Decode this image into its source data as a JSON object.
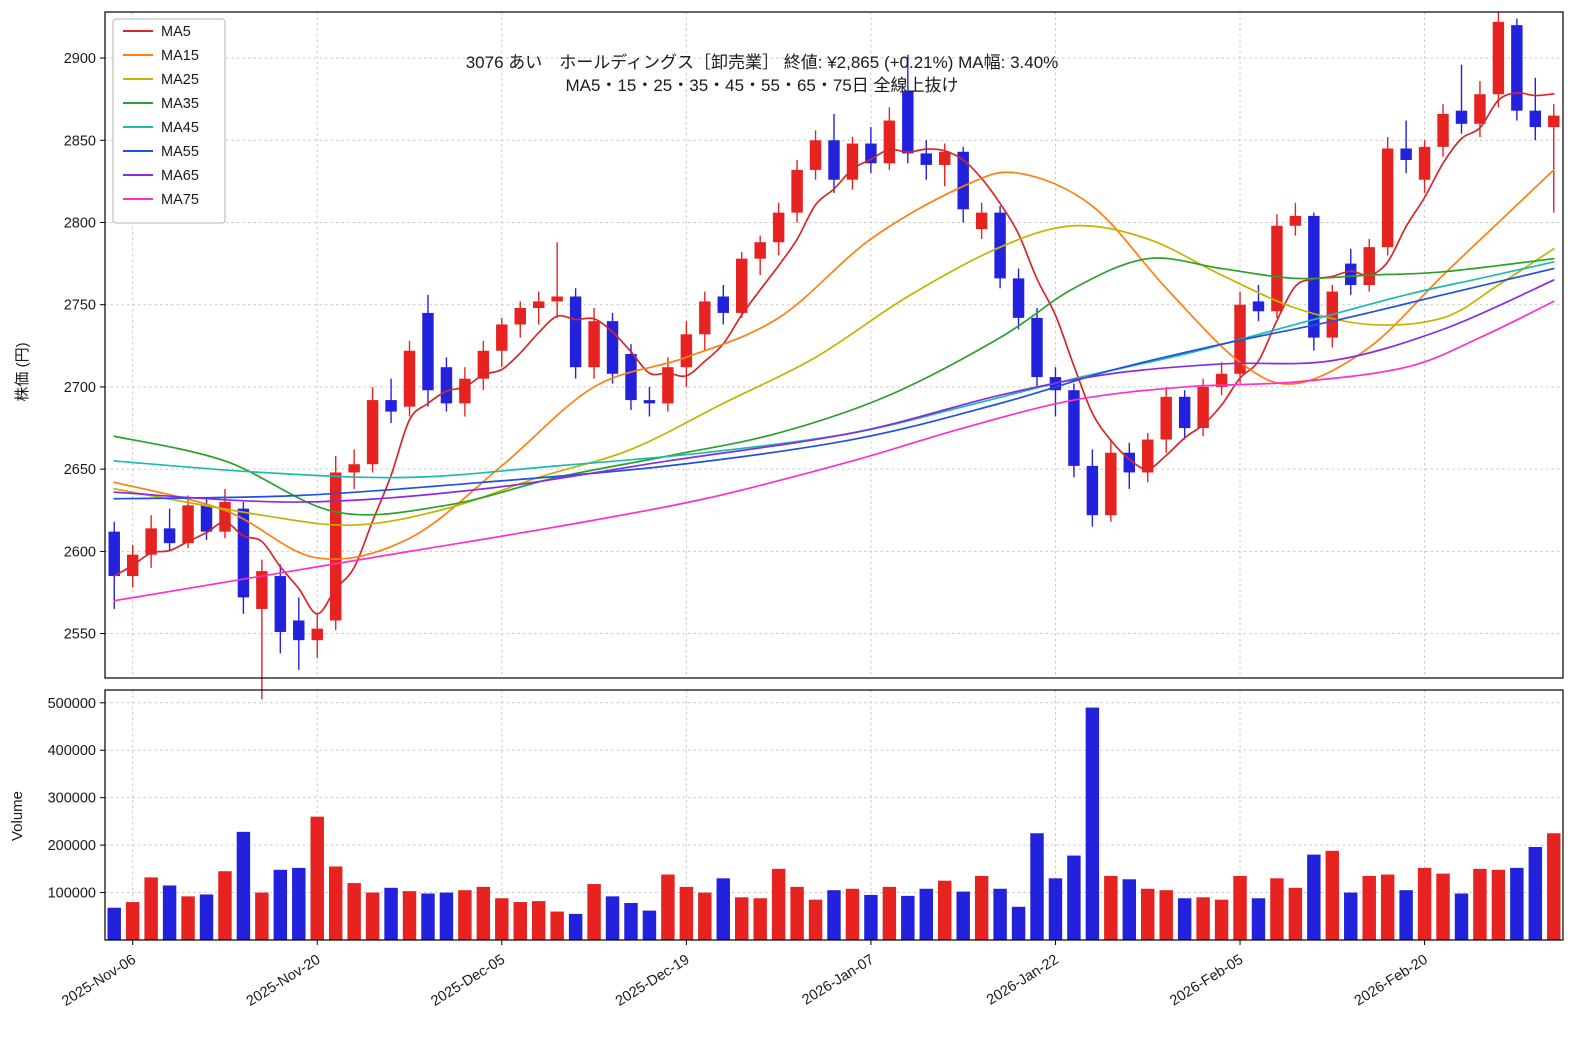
{
  "title": {
    "line1": "3076  あい　ホールディングス［卸売業］  終値: ¥2,865 (+0.21%)  MA幅: 3.40%",
    "line2": "MA5・15・25・35・45・55・65・75日 全線上抜け"
  },
  "axes": {
    "price_label": "株価 (円)",
    "volume_label": "Volume"
  },
  "chart_data": {
    "type": "candlestick",
    "up_color": "#e62320",
    "down_color": "#2222dd",
    "grid_color": "#c9c9c9",
    "price_ticks": [
      2550,
      2600,
      2650,
      2700,
      2750,
      2800,
      2850,
      2900
    ],
    "volume_ticks": [
      100000,
      200000,
      300000,
      400000,
      500000
    ],
    "x_tick_indices": [
      1,
      11,
      21,
      31,
      41,
      51,
      61,
      71
    ],
    "x_tick_labels": [
      "2025-Nov-06",
      "2025-Nov-20",
      "2025-Dec-05",
      "2025-Dec-19",
      "2026-Jan-07",
      "2026-Jan-22",
      "2026-Feb-05",
      "2026-Feb-20"
    ],
    "price_range": [
      2523,
      2928
    ],
    "volume_range": [
      0,
      527000
    ],
    "candles": [
      [
        2612,
        2618,
        2565,
        2585,
        68000
      ],
      [
        2585,
        2604,
        2578,
        2598,
        80000
      ],
      [
        2598,
        2622,
        2590,
        2614,
        132000
      ],
      [
        2614,
        2626,
        2600,
        2605,
        115000
      ],
      [
        2605,
        2634,
        2602,
        2628,
        92000
      ],
      [
        2628,
        2633,
        2607,
        2612,
        96000
      ],
      [
        2612,
        2638,
        2608,
        2630,
        145000
      ],
      [
        2626,
        2630,
        2562,
        2572,
        228000
      ],
      [
        2565,
        2595,
        2510,
        2588,
        100000
      ],
      [
        2585,
        2592,
        2538,
        2551,
        148000
      ],
      [
        2558,
        2572,
        2528,
        2546,
        152000
      ],
      [
        2546,
        2562,
        2535,
        2553,
        260000
      ],
      [
        2558,
        2658,
        2552,
        2648,
        155000
      ],
      [
        2648,
        2662,
        2638,
        2653,
        120000
      ],
      [
        2653,
        2700,
        2648,
        2692,
        100000
      ],
      [
        2692,
        2705,
        2678,
        2685,
        110000
      ],
      [
        2688,
        2728,
        2682,
        2722,
        103000
      ],
      [
        2745,
        2756,
        2688,
        2698,
        98000
      ],
      [
        2712,
        2718,
        2685,
        2690,
        100000
      ],
      [
        2690,
        2712,
        2682,
        2705,
        105000
      ],
      [
        2705,
        2728,
        2698,
        2722,
        112000
      ],
      [
        2722,
        2742,
        2712,
        2738,
        88000
      ],
      [
        2738,
        2752,
        2730,
        2748,
        80000
      ],
      [
        2748,
        2758,
        2738,
        2752,
        82000
      ],
      [
        2752,
        2788,
        2742,
        2755,
        60000
      ],
      [
        2755,
        2760,
        2705,
        2712,
        55000
      ],
      [
        2712,
        2748,
        2705,
        2740,
        118000
      ],
      [
        2740,
        2745,
        2702,
        2708,
        92000
      ],
      [
        2720,
        2726,
        2686,
        2692,
        78000
      ],
      [
        2692,
        2700,
        2682,
        2690,
        62000
      ],
      [
        2690,
        2718,
        2685,
        2712,
        138000
      ],
      [
        2712,
        2740,
        2700,
        2732,
        112000
      ],
      [
        2732,
        2758,
        2722,
        2752,
        100000
      ],
      [
        2755,
        2762,
        2738,
        2745,
        130000
      ],
      [
        2745,
        2782,
        2742,
        2778,
        90000
      ],
      [
        2778,
        2792,
        2768,
        2788,
        88000
      ],
      [
        2788,
        2812,
        2780,
        2806,
        150000
      ],
      [
        2806,
        2838,
        2800,
        2832,
        112000
      ],
      [
        2832,
        2856,
        2826,
        2850,
        85000
      ],
      [
        2850,
        2866,
        2818,
        2826,
        105000
      ],
      [
        2826,
        2852,
        2820,
        2848,
        108000
      ],
      [
        2848,
        2858,
        2830,
        2836,
        95000
      ],
      [
        2836,
        2870,
        2832,
        2862,
        112000
      ],
      [
        2880,
        2902,
        2836,
        2842,
        93000
      ],
      [
        2842,
        2850,
        2826,
        2835,
        108000
      ],
      [
        2835,
        2848,
        2822,
        2843,
        125000
      ],
      [
        2843,
        2846,
        2800,
        2808,
        102000
      ],
      [
        2796,
        2812,
        2790,
        2806,
        135000
      ],
      [
        2806,
        2810,
        2760,
        2766,
        108000
      ],
      [
        2766,
        2772,
        2735,
        2742,
        70000
      ],
      [
        2742,
        2748,
        2700,
        2706,
        225000
      ],
      [
        2706,
        2712,
        2682,
        2698,
        130000
      ],
      [
        2698,
        2702,
        2645,
        2652,
        178000
      ],
      [
        2652,
        2662,
        2615,
        2622,
        490000
      ],
      [
        2622,
        2668,
        2618,
        2660,
        135000
      ],
      [
        2660,
        2666,
        2638,
        2648,
        128000
      ],
      [
        2648,
        2672,
        2642,
        2668,
        108000
      ],
      [
        2668,
        2700,
        2660,
        2694,
        105000
      ],
      [
        2694,
        2698,
        2668,
        2675,
        88000
      ],
      [
        2675,
        2705,
        2670,
        2700,
        90000
      ],
      [
        2700,
        2715,
        2695,
        2708,
        85000
      ],
      [
        2708,
        2758,
        2702,
        2750,
        135000
      ],
      [
        2752,
        2762,
        2740,
        2746,
        88000
      ],
      [
        2746,
        2805,
        2742,
        2798,
        130000
      ],
      [
        2798,
        2812,
        2792,
        2804,
        110000
      ],
      [
        2804,
        2806,
        2722,
        2730,
        180000
      ],
      [
        2730,
        2762,
        2724,
        2758,
        188000
      ],
      [
        2775,
        2784,
        2756,
        2762,
        100000
      ],
      [
        2762,
        2790,
        2758,
        2785,
        135000
      ],
      [
        2785,
        2852,
        2780,
        2845,
        138000
      ],
      [
        2845,
        2862,
        2830,
        2838,
        105000
      ],
      [
        2826,
        2850,
        2818,
        2846,
        152000
      ],
      [
        2846,
        2872,
        2840,
        2866,
        140000
      ],
      [
        2868,
        2896,
        2854,
        2860,
        98000
      ],
      [
        2860,
        2886,
        2852,
        2878,
        150000
      ],
      [
        2878,
        2928,
        2870,
        2922,
        148000
      ],
      [
        2920,
        2924,
        2862,
        2868,
        152000
      ],
      [
        2868,
        2888,
        2850,
        2858,
        196000
      ],
      [
        2858,
        2872,
        2806,
        2865,
        225000
      ]
    ],
    "ma_series": [
      {
        "name": "MA5",
        "color": "#d62728",
        "window": 5
      },
      {
        "name": "MA15",
        "color": "#ff7f0e",
        "points": [
          [
            0,
            2642
          ],
          [
            6,
            2625
          ],
          [
            11,
            2596
          ],
          [
            16,
            2608
          ],
          [
            21,
            2652
          ],
          [
            26,
            2700
          ],
          [
            31,
            2718
          ],
          [
            36,
            2742
          ],
          [
            41,
            2790
          ],
          [
            46,
            2822
          ],
          [
            49,
            2830
          ],
          [
            53,
            2810
          ],
          [
            57,
            2760
          ],
          [
            61,
            2715
          ],
          [
            64,
            2702
          ],
          [
            68,
            2724
          ],
          [
            72,
            2768
          ],
          [
            75,
            2800
          ],
          [
            78,
            2832
          ]
        ]
      },
      {
        "name": "MA25",
        "color": "#c3b400",
        "points": [
          [
            0,
            2638
          ],
          [
            8,
            2622
          ],
          [
            13,
            2616
          ],
          [
            18,
            2626
          ],
          [
            23,
            2645
          ],
          [
            28,
            2662
          ],
          [
            33,
            2690
          ],
          [
            38,
            2718
          ],
          [
            43,
            2755
          ],
          [
            48,
            2785
          ],
          [
            52,
            2798
          ],
          [
            56,
            2790
          ],
          [
            60,
            2768
          ],
          [
            64,
            2748
          ],
          [
            68,
            2738
          ],
          [
            72,
            2742
          ],
          [
            75,
            2762
          ],
          [
            78,
            2784
          ]
        ]
      },
      {
        "name": "MA35",
        "color": "#2ca02c",
        "points": [
          [
            0,
            2670
          ],
          [
            6,
            2655
          ],
          [
            12,
            2624
          ],
          [
            18,
            2628
          ],
          [
            24,
            2645
          ],
          [
            30,
            2658
          ],
          [
            36,
            2672
          ],
          [
            42,
            2695
          ],
          [
            48,
            2730
          ],
          [
            52,
            2760
          ],
          [
            56,
            2778
          ],
          [
            60,
            2772
          ],
          [
            64,
            2766
          ],
          [
            68,
            2768
          ],
          [
            72,
            2770
          ],
          [
            78,
            2778
          ]
        ]
      },
      {
        "name": "MA45",
        "color": "#1abcb0",
        "points": [
          [
            0,
            2655
          ],
          [
            8,
            2648
          ],
          [
            16,
            2645
          ],
          [
            24,
            2652
          ],
          [
            32,
            2660
          ],
          [
            40,
            2672
          ],
          [
            46,
            2688
          ],
          [
            52,
            2705
          ],
          [
            58,
            2720
          ],
          [
            64,
            2738
          ],
          [
            70,
            2756
          ],
          [
            74,
            2766
          ],
          [
            78,
            2776
          ]
        ]
      },
      {
        "name": "MA55",
        "color": "#2050df",
        "points": [
          [
            0,
            2632
          ],
          [
            10,
            2634
          ],
          [
            20,
            2642
          ],
          [
            30,
            2652
          ],
          [
            40,
            2668
          ],
          [
            48,
            2690
          ],
          [
            54,
            2710
          ],
          [
            60,
            2726
          ],
          [
            66,
            2740
          ],
          [
            72,
            2756
          ],
          [
            78,
            2772
          ]
        ]
      },
      {
        "name": "MA65",
        "color": "#8a2be2",
        "points": [
          [
            0,
            2636
          ],
          [
            10,
            2630
          ],
          [
            20,
            2638
          ],
          [
            30,
            2655
          ],
          [
            40,
            2672
          ],
          [
            48,
            2695
          ],
          [
            54,
            2708
          ],
          [
            60,
            2714
          ],
          [
            66,
            2716
          ],
          [
            72,
            2735
          ],
          [
            78,
            2765
          ]
        ]
      },
      {
        "name": "MA75",
        "color": "#ff30c8",
        "points": [
          [
            0,
            2570
          ],
          [
            8,
            2585
          ],
          [
            16,
            2600
          ],
          [
            24,
            2615
          ],
          [
            32,
            2632
          ],
          [
            40,
            2655
          ],
          [
            46,
            2675
          ],
          [
            52,
            2692
          ],
          [
            58,
            2700
          ],
          [
            64,
            2703
          ],
          [
            70,
            2712
          ],
          [
            74,
            2730
          ],
          [
            78,
            2752
          ]
        ]
      }
    ]
  }
}
